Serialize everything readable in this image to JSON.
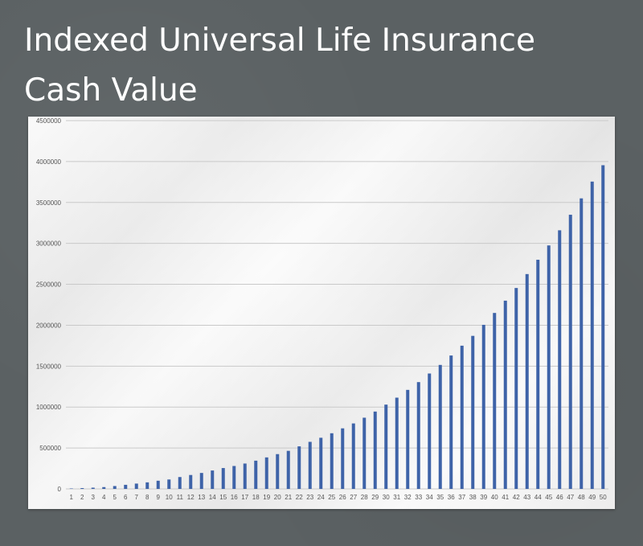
{
  "title_line1": "Indexed Universal Life Insurance",
  "title_line2": "Cash Value",
  "colors": {
    "bar": "#3e63a8",
    "grid": "#c9c9c9",
    "background": "#5b6163"
  },
  "chart_data": {
    "type": "bar",
    "ylim": [
      0,
      4500000
    ],
    "yticks": [
      "4500000",
      "4000000",
      "3500000",
      "3000000",
      "2500000",
      "2000000",
      "1500000",
      "1000000",
      "500000",
      "0"
    ],
    "grid": true,
    "legend": "none",
    "categories": [
      "1",
      "2",
      "3",
      "4",
      "5",
      "6",
      "7",
      "8",
      "9",
      "10",
      "11",
      "12",
      "13",
      "14",
      "15",
      "16",
      "17",
      "18",
      "19",
      "20",
      "21",
      "22",
      "23",
      "24",
      "25",
      "26",
      "27",
      "28",
      "29",
      "30",
      "31",
      "32",
      "33",
      "34",
      "35",
      "36",
      "37",
      "38",
      "39",
      "40",
      "41",
      "42",
      "43",
      "44",
      "45",
      "46",
      "47",
      "48",
      "49",
      "50"
    ],
    "values": [
      5000,
      10000,
      15000,
      22000,
      35000,
      50000,
      65000,
      80000,
      100000,
      115000,
      145000,
      170000,
      195000,
      225000,
      255000,
      280000,
      310000,
      345000,
      385000,
      425000,
      465000,
      520000,
      575000,
      625000,
      680000,
      740000,
      800000,
      870000,
      945000,
      1030000,
      1115000,
      1210000,
      1305000,
      1410000,
      1515000,
      1630000,
      1750000,
      1870000,
      2005000,
      2150000,
      2300000,
      2455000,
      2625000,
      2800000,
      2975000,
      3160000,
      3350000,
      3550000,
      3755000,
      3955000
    ]
  }
}
